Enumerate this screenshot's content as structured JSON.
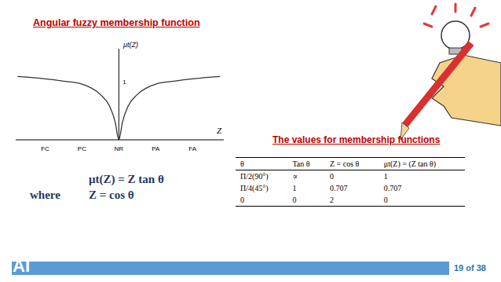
{
  "chart_data": {
    "type": "line",
    "title": "Angular fuzzy membership function",
    "x_label": "Z",
    "y_label": "μt(Z)",
    "x": [
      -2.75,
      -2,
      -1.5,
      -1,
      -0.5,
      -0.25,
      -0.1,
      0,
      0.1,
      0.25,
      0.5,
      1,
      1.5,
      2,
      2.75
    ],
    "values": [
      1.09,
      1.05,
      1.01,
      0.96,
      0.78,
      0.58,
      0.31,
      0,
      0.31,
      0.58,
      0.78,
      0.96,
      1.01,
      1.05,
      1.09
    ],
    "color": "#333333",
    "xlim": [
      -2.8,
      2.85
    ],
    "ylim": [
      0,
      1.57
    ],
    "xticks": [
      {
        "value": -2,
        "label": "FC"
      },
      {
        "value": -1,
        "label": "PC"
      },
      {
        "value": 0,
        "label": "NR"
      },
      {
        "value": 1,
        "label": "PA"
      },
      {
        "value": 2,
        "label": "FA"
      }
    ],
    "yticks": [
      1
    ],
    "grid": false
  },
  "formula": {
    "lines": [
      {
        "lead": "",
        "expr": "μt(Z) = Z tan θ"
      },
      {
        "lead": "where",
        "expr": "Z = cos θ"
      }
    ]
  },
  "table": {
    "title": "The values for membership functions",
    "header": [
      "θ",
      "Tan θ",
      "Z = cos θ",
      "μt(Z) = (Z tan θ)"
    ],
    "rows": [
      [
        "Π/2(90°)",
        "∝",
        "0",
        "1"
      ],
      [
        "Π/4(45°)",
        "1",
        "0.707",
        "0.707"
      ],
      [
        "0",
        "0",
        "2",
        "0"
      ]
    ]
  },
  "footer": {
    "logo": "AI",
    "page": "19 of 38"
  }
}
